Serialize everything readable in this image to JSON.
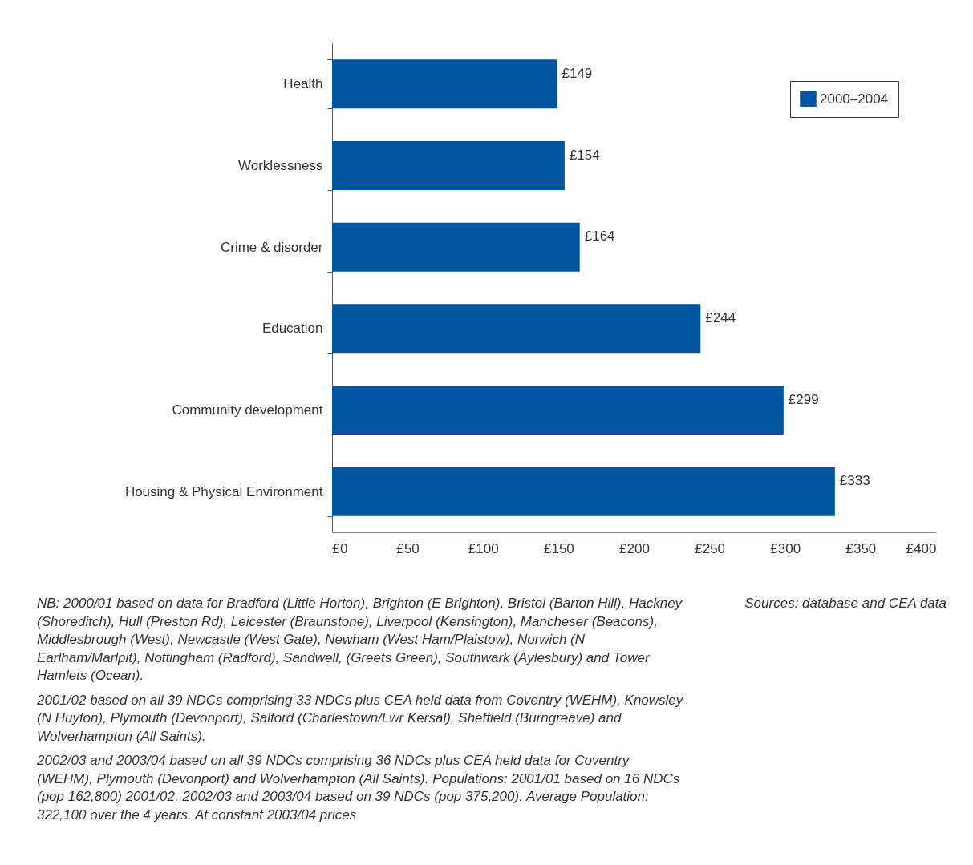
{
  "chart_data": {
    "type": "bar",
    "orientation": "horizontal",
    "categories": [
      "Health",
      "Worklessness",
      "Crime & disorder",
      "Education",
      "Community development",
      "Housing & Physical Environment"
    ],
    "series": [
      {
        "name": "2000–2004",
        "color": "#0055a0",
        "values": [
          149,
          154,
          164,
          244,
          299,
          333
        ],
        "value_labels": [
          "£149",
          "£154",
          "£164",
          "£244",
          "£299",
          "£333"
        ]
      }
    ],
    "xlim": [
      0,
      400
    ],
    "xticks": [
      {
        "value": 0,
        "label": "£0"
      },
      {
        "value": 50,
        "label": "£50"
      },
      {
        "value": 100,
        "label": "£100"
      },
      {
        "value": 150,
        "label": "£150"
      },
      {
        "value": 200,
        "label": "£200"
      },
      {
        "value": 250,
        "label": "£250"
      },
      {
        "value": 300,
        "label": "£300"
      },
      {
        "value": 350,
        "label": "£350"
      },
      {
        "value": 400,
        "label": "£400"
      }
    ],
    "legend": "top right",
    "grid": false,
    "annotations": [
      "NB: 2000/01 based on data for Bradford (Little Horton), Brighton (E Brighton), Bristol (Barton Hill), Hackney (Shoreditch), Hull (Preston Rd), Leicester (Braunstone), Liverpool (Kensington), Mancheser (Beacons), Middlesbrough (West), Newcastle (West Gate), Newham (West Ham/Plaistow), Norwich (N Earlham/Marlpit), Nottingham (Radford), Sandwell, (Greets Green), Southwark (Aylesbury) and Tower Hamlets (Ocean).",
      "2001/02 based on all 39 NDCs comprising 33 NDCs plus CEA held data from Coventry (WEHM), Knowsley (N Huyton), Plymouth (Devonport), Salford (Charlestown/Lwr Kersal), Sheffield (Burngreave) and Wolverhampton (All Saints).",
      "2002/03 and 2003/04 based on all 39 NDCs comprising 36 NDCs plus CEA held data for Coventry (WEHM), Plymouth (Devonport) and Wolverhampton (All Saints). Populations: 2001/01 based on 16 NDCs (pop 162,800) 2001/02, 2002/03 and 2003/04 based on 39 NDCs (pop 375,200). Average Population: 322,100 over the 4 years. At constant 2003/04 prices",
      "Sources: database and CEA data"
    ]
  }
}
